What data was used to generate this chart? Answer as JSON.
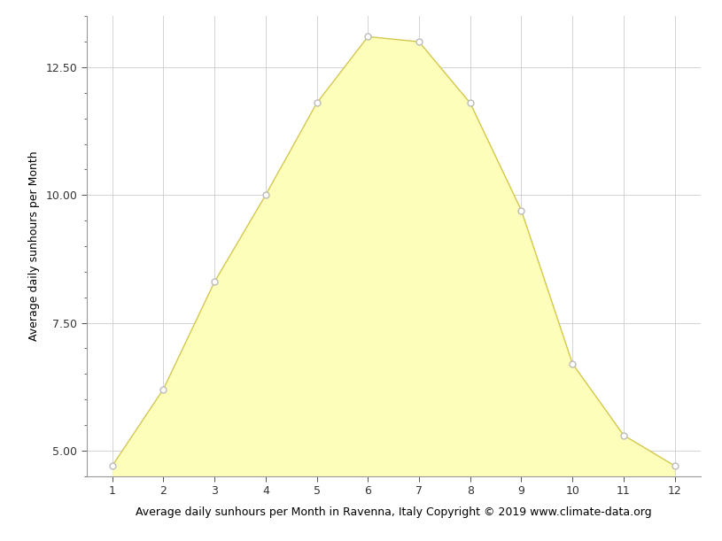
{
  "x": [
    1,
    2,
    3,
    4,
    5,
    6,
    7,
    8,
    9,
    10,
    11,
    12
  ],
  "y": [
    4.7,
    6.2,
    8.3,
    10.0,
    11.8,
    13.1,
    13.0,
    11.8,
    9.7,
    6.7,
    5.3,
    4.7
  ],
  "fill_color": "#FEFEBB",
  "line_color": "#D4C84A",
  "marker_color": "white",
  "marker_edge_color": "#BBBBBB",
  "ylabel": "Average daily sunhours per Month",
  "xlabel": "Average daily sunhours per Month in Ravenna, Italy Copyright © 2019 www.climate-data.org",
  "xlim": [
    0.5,
    12.5
  ],
  "ylim": [
    4.5,
    13.5
  ],
  "yticks_major": [
    5.0,
    7.5,
    10.0,
    12.5
  ],
  "yticks_minor": [
    4.5,
    5.0,
    5.5,
    6.0,
    6.5,
    7.0,
    7.5,
    8.0,
    8.5,
    9.0,
    9.5,
    10.0,
    10.5,
    11.0,
    11.5,
    12.0,
    12.5,
    13.0,
    13.5
  ],
  "xticks": [
    1,
    2,
    3,
    4,
    5,
    6,
    7,
    8,
    9,
    10,
    11,
    12
  ],
  "grid_color": "#CCCCCC",
  "bg_color": "#FFFFFF",
  "axis_label_fontsize": 9,
  "tick_fontsize": 9,
  "spine_color": "#999999"
}
